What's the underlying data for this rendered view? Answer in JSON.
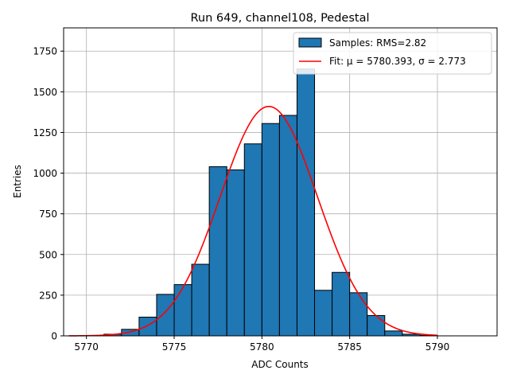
{
  "chart_data": {
    "type": "bar",
    "title": "Run 649, channel108, Pedestal",
    "xlabel": "ADC Counts",
    "ylabel": "Entries",
    "xlim": [
      5768.7,
      5793.4
    ],
    "ylim": [
      0,
      1893
    ],
    "xticks": [
      5770,
      5775,
      5780,
      5785,
      5790
    ],
    "yticks": [
      0,
      250,
      500,
      750,
      1000,
      1250,
      1500,
      1750
    ],
    "grid": true,
    "legend_position": "top-right",
    "bin_width": 1,
    "bins": [
      {
        "left": 5771,
        "count": 10
      },
      {
        "left": 5772,
        "count": 40
      },
      {
        "left": 5773,
        "count": 115
      },
      {
        "left": 5774,
        "count": 255
      },
      {
        "left": 5775,
        "count": 315
      },
      {
        "left": 5776,
        "count": 440
      },
      {
        "left": 5777,
        "count": 1040
      },
      {
        "left": 5778,
        "count": 1020
      },
      {
        "left": 5779,
        "count": 1180
      },
      {
        "left": 5780,
        "count": 1305
      },
      {
        "left": 5781,
        "count": 1355
      },
      {
        "left": 5782,
        "count": 1640
      },
      {
        "left": 5783,
        "count": 280
      },
      {
        "left": 5784,
        "count": 390
      },
      {
        "left": 5785,
        "count": 265
      },
      {
        "left": 5786,
        "count": 125
      },
      {
        "left": 5787,
        "count": 30
      },
      {
        "left": 5788,
        "count": 10
      },
      {
        "left": 5789,
        "count": 3
      }
    ],
    "fit": {
      "mu": 5780.393,
      "sigma": 2.773,
      "amplitude": 1410,
      "x_range": [
        5769,
        5790
      ]
    },
    "series": [
      {
        "name": "Samples: RMS=2.82",
        "kind": "histogram",
        "color": "#1f77b4",
        "edgecolor": "#000000"
      },
      {
        "name": "Fit: μ = 5780.393, σ = 2.773",
        "kind": "line",
        "color": "#ff0000"
      }
    ]
  }
}
